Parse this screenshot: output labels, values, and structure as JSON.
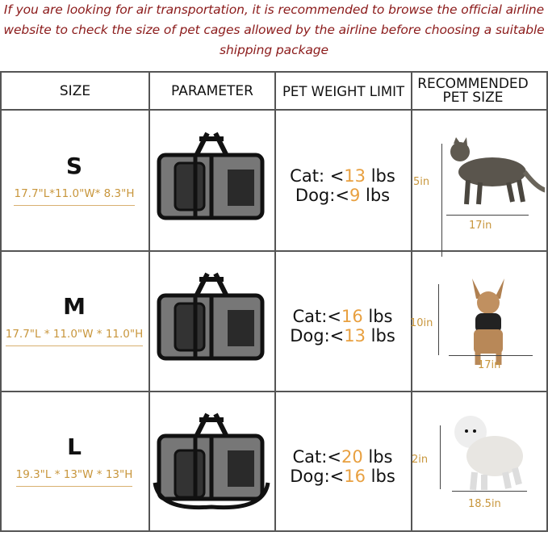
{
  "note": [
    "If you are looking for air transportation, it is recommended to browse the official airline",
    "website to check the size of pet cages allowed by the airline before choosing a suitable",
    "shipping package"
  ],
  "headers": {
    "size": "SIZE",
    "parameter": "PARAMETER",
    "weight": "PET WEIGHT LIMIT",
    "recommended": "RECOMMENDED PET SIZE"
  },
  "rows": [
    {
      "size": "S",
      "dims": "17.7\"L*11.0\"W* 8.3\"H",
      "cat_label": "Cat: <",
      "cat": "13",
      "dog_label": "Dog:<",
      "dog": "9",
      "unit": " lbs",
      "pet": "cat",
      "height": "5in",
      "length": "17in"
    },
    {
      "size": "M",
      "dims": "17.7\"L * 11.0\"W * 11.0\"H",
      "cat_label": "Cat:<",
      "cat": "16",
      "dog_label": "Dog:<",
      "dog": "13",
      "unit": " lbs",
      "pet": "yorkshire-terrier",
      "height": "10in",
      "length": "17in"
    },
    {
      "size": "L",
      "dims": "19.3\"L * 13\"W * 13\"H",
      "cat_label": "Cat:<",
      "cat": "20",
      "dog_label": "Dog:<",
      "dog": "16",
      "unit": " lbs",
      "pet": "white-poodle",
      "height": "2in",
      "length": "18.5in"
    }
  ],
  "colors": {
    "note": "#8b1a1a",
    "accent": "#e8a040",
    "dims": "#c8963c",
    "border": "#555555"
  }
}
